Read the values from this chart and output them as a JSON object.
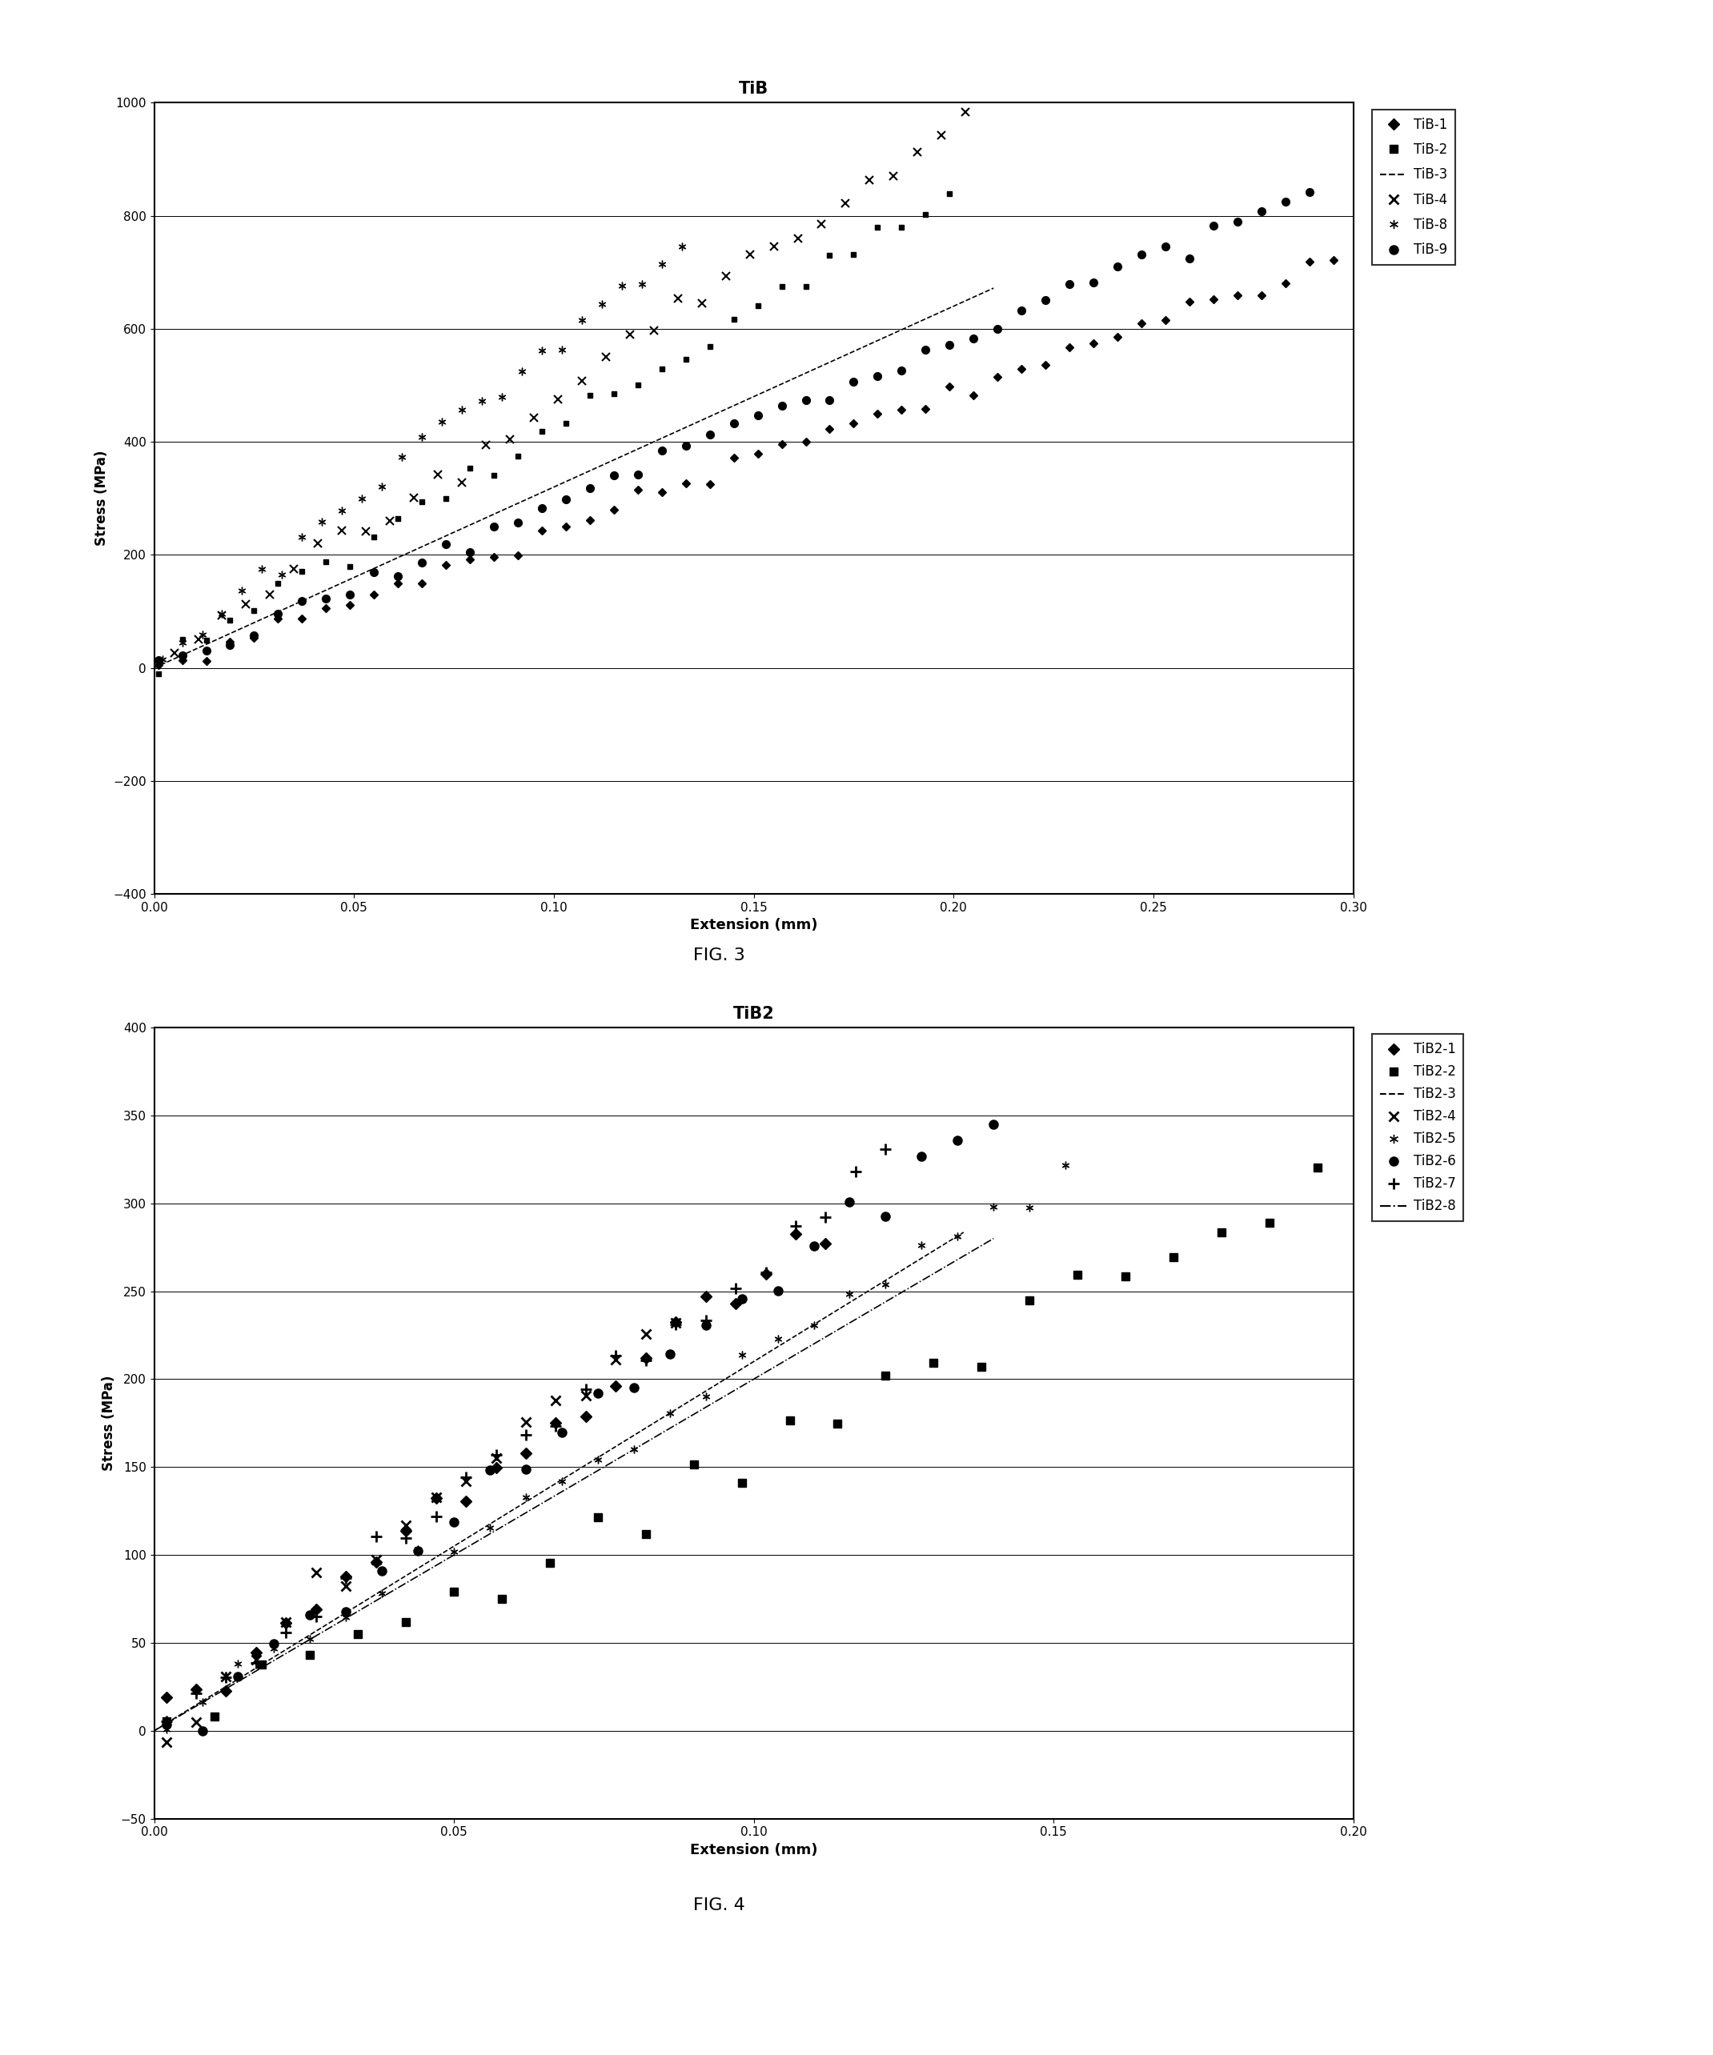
{
  "fig3": {
    "title": "TiB",
    "xlabel": "Extension (mm)",
    "ylabel": "Stress (MPa)",
    "xlim": [
      0,
      0.3
    ],
    "ylim": [
      -400,
      1000
    ],
    "xticks": [
      0,
      0.05,
      0.1,
      0.15,
      0.2,
      0.25,
      0.3
    ],
    "yticks": [
      -400,
      -200,
      0,
      200,
      400,
      600,
      800,
      1000
    ]
  },
  "fig4": {
    "title": "TiB2",
    "xlabel": "Extension (mm)",
    "ylabel": "Stress (MPa)",
    "xlim": [
      0,
      0.2
    ],
    "ylim": [
      -50,
      400
    ],
    "xticks": [
      0,
      0.05,
      0.1,
      0.15,
      0.2
    ],
    "yticks": [
      -50,
      0,
      50,
      100,
      150,
      200,
      250,
      300,
      350,
      400
    ]
  },
  "fig3_caption": "FIG. 3",
  "fig4_caption": "FIG. 4",
  "background_color": "#ffffff"
}
